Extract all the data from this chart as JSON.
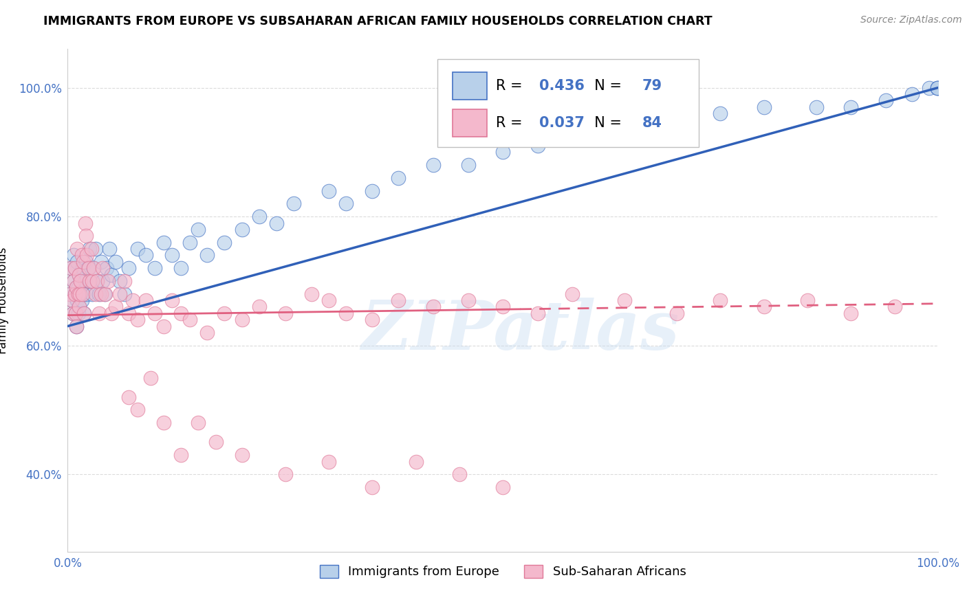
{
  "title": "IMMIGRANTS FROM EUROPE VS SUBSAHARAN AFRICAN FAMILY HOUSEHOLDS CORRELATION CHART",
  "source": "Source: ZipAtlas.com",
  "ylabel": "Family Households",
  "legend_europe": "Immigrants from Europe",
  "legend_africa": "Sub-Saharan Africans",
  "R_europe": 0.436,
  "N_europe": 79,
  "R_africa": 0.037,
  "N_africa": 84,
  "color_europe_fill": "#b8d0ea",
  "color_europe_edge": "#4472c4",
  "color_africa_fill": "#f4b8cc",
  "color_africa_edge": "#e07898",
  "line_europe": "#3060b8",
  "line_africa": "#e06080",
  "background": "#ffffff",
  "grid_color": "#cccccc",
  "xlim": [
    0.0,
    1.0
  ],
  "ylim": [
    0.28,
    1.06
  ],
  "ytick_vals": [
    0.4,
    0.6,
    0.8,
    1.0
  ],
  "ytick_labels": [
    "40.0%",
    "60.0%",
    "80.0%",
    "100.0%"
  ],
  "xtick_vals": [
    0.0,
    1.0
  ],
  "xtick_labels": [
    "0.0%",
    "100.0%"
  ],
  "europe_x": [
    0.003,
    0.004,
    0.005,
    0.006,
    0.007,
    0.007,
    0.008,
    0.008,
    0.009,
    0.01,
    0.01,
    0.011,
    0.011,
    0.012,
    0.012,
    0.013,
    0.013,
    0.014,
    0.015,
    0.016,
    0.017,
    0.018,
    0.019,
    0.02,
    0.021,
    0.022,
    0.023,
    0.025,
    0.026,
    0.028,
    0.03,
    0.032,
    0.034,
    0.036,
    0.038,
    0.04,
    0.042,
    0.045,
    0.048,
    0.05,
    0.055,
    0.06,
    0.065,
    0.07,
    0.08,
    0.09,
    0.1,
    0.11,
    0.12,
    0.13,
    0.14,
    0.15,
    0.16,
    0.18,
    0.2,
    0.22,
    0.24,
    0.26,
    0.3,
    0.32,
    0.35,
    0.38,
    0.42,
    0.46,
    0.5,
    0.54,
    0.58,
    0.64,
    0.7,
    0.75,
    0.8,
    0.86,
    0.9,
    0.94,
    0.97,
    0.99,
    0.999,
    0.999,
    0.999
  ],
  "europe_y": [
    0.68,
    0.72,
    0.67,
    0.65,
    0.7,
    0.74,
    0.68,
    0.72,
    0.65,
    0.69,
    0.63,
    0.67,
    0.73,
    0.65,
    0.69,
    0.66,
    0.71,
    0.68,
    0.7,
    0.67,
    0.72,
    0.68,
    0.65,
    0.7,
    0.73,
    0.68,
    0.72,
    0.75,
    0.7,
    0.68,
    0.72,
    0.75,
    0.7,
    0.68,
    0.73,
    0.7,
    0.68,
    0.72,
    0.75,
    0.71,
    0.73,
    0.7,
    0.68,
    0.72,
    0.75,
    0.74,
    0.72,
    0.76,
    0.74,
    0.72,
    0.76,
    0.78,
    0.74,
    0.76,
    0.78,
    0.8,
    0.79,
    0.82,
    0.84,
    0.82,
    0.84,
    0.86,
    0.88,
    0.88,
    0.9,
    0.91,
    0.92,
    0.94,
    0.95,
    0.96,
    0.97,
    0.97,
    0.97,
    0.98,
    0.99,
    1.0,
    1.0,
    1.0,
    1.0
  ],
  "africa_x": [
    0.003,
    0.004,
    0.005,
    0.006,
    0.007,
    0.008,
    0.008,
    0.009,
    0.01,
    0.01,
    0.011,
    0.012,
    0.013,
    0.013,
    0.014,
    0.015,
    0.016,
    0.017,
    0.018,
    0.019,
    0.02,
    0.021,
    0.022,
    0.024,
    0.025,
    0.027,
    0.028,
    0.03,
    0.032,
    0.034,
    0.036,
    0.038,
    0.04,
    0.043,
    0.046,
    0.05,
    0.055,
    0.06,
    0.065,
    0.07,
    0.075,
    0.08,
    0.09,
    0.1,
    0.11,
    0.12,
    0.13,
    0.14,
    0.16,
    0.18,
    0.2,
    0.22,
    0.25,
    0.28,
    0.3,
    0.32,
    0.35,
    0.38,
    0.42,
    0.46,
    0.5,
    0.54,
    0.58,
    0.64,
    0.7,
    0.75,
    0.8,
    0.85,
    0.9,
    0.95,
    0.07,
    0.08,
    0.095,
    0.11,
    0.13,
    0.15,
    0.17,
    0.2,
    0.25,
    0.3,
    0.35,
    0.4,
    0.45,
    0.5
  ],
  "africa_y": [
    0.68,
    0.72,
    0.67,
    0.65,
    0.7,
    0.68,
    0.72,
    0.65,
    0.69,
    0.63,
    0.75,
    0.68,
    0.66,
    0.71,
    0.68,
    0.7,
    0.74,
    0.68,
    0.73,
    0.65,
    0.79,
    0.77,
    0.74,
    0.72,
    0.7,
    0.75,
    0.7,
    0.72,
    0.68,
    0.7,
    0.65,
    0.68,
    0.72,
    0.68,
    0.7,
    0.65,
    0.66,
    0.68,
    0.7,
    0.65,
    0.67,
    0.64,
    0.67,
    0.65,
    0.63,
    0.67,
    0.65,
    0.64,
    0.62,
    0.65,
    0.64,
    0.66,
    0.65,
    0.68,
    0.67,
    0.65,
    0.64,
    0.67,
    0.66,
    0.67,
    0.66,
    0.65,
    0.68,
    0.67,
    0.65,
    0.67,
    0.66,
    0.67,
    0.65,
    0.66,
    0.52,
    0.5,
    0.55,
    0.48,
    0.43,
    0.48,
    0.45,
    0.43,
    0.4,
    0.42,
    0.38,
    0.42,
    0.4,
    0.38
  ],
  "line_e_x0": 0.0,
  "line_e_y0": 0.63,
  "line_e_x1": 1.0,
  "line_e_y1": 1.0,
  "line_a_x0": 0.0,
  "line_a_y0": 0.647,
  "line_a_x1": 1.0,
  "line_a_y1": 0.665,
  "line_a_solid_end": 0.52,
  "watermark_text": "ZIPatlas",
  "watermark_color": "#c5daf0",
  "watermark_alpha": 0.4
}
